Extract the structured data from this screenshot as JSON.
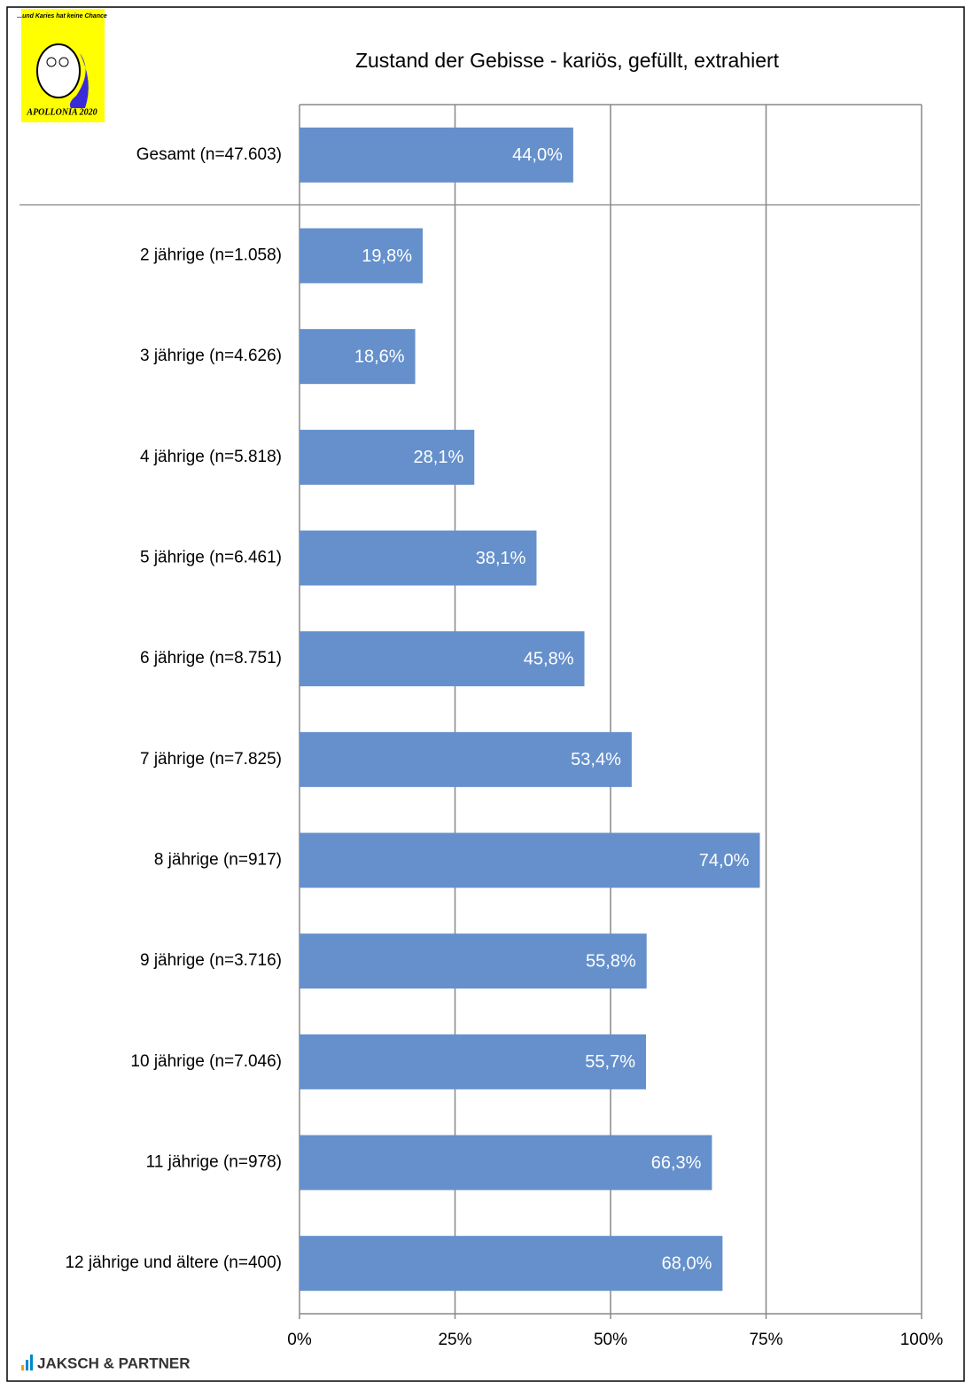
{
  "logo": {
    "slogan": "...und Karies hat keine Chance",
    "name": "APOLLONIA 2020"
  },
  "footer": "JAKSCH & PARTNER",
  "chart_data": {
    "type": "bar",
    "orientation": "horizontal",
    "title": "Zustand der Gebisse - kariös, gefüllt, extrahiert",
    "categories": [
      "Gesamt (n=47.603)",
      "2 jährige (n=1.058)",
      "3 jährige (n=4.626)",
      "4 jährige (n=5.818)",
      "5 jährige (n=6.461)",
      "6 jährige (n=8.751)",
      "7 jährige (n=7.825)",
      "8 jährige (n=917)",
      "9 jährige (n=3.716)",
      "10 jährige (n=7.046)",
      "11 jährige (n=978)",
      "12 jährige und ältere (n=400)"
    ],
    "values": [
      44.0,
      19.8,
      18.6,
      28.1,
      38.1,
      45.8,
      53.4,
      74.0,
      55.8,
      55.7,
      66.3,
      68.0
    ],
    "value_labels": [
      "44,0%",
      "19,8%",
      "18,6%",
      "28,1%",
      "38,1%",
      "45,8%",
      "53,4%",
      "74,0%",
      "55,8%",
      "55,7%",
      "66,3%",
      "68,0%"
    ],
    "color": "#6590cb",
    "xlim": [
      0,
      100
    ],
    "xticks": [
      {
        "value": 0,
        "label": "0%"
      },
      {
        "value": 25,
        "label": "25%"
      },
      {
        "value": 50,
        "label": "50%"
      },
      {
        "value": 75,
        "label": "75%"
      },
      {
        "value": 100,
        "label": "100%"
      }
    ],
    "grid": true
  }
}
